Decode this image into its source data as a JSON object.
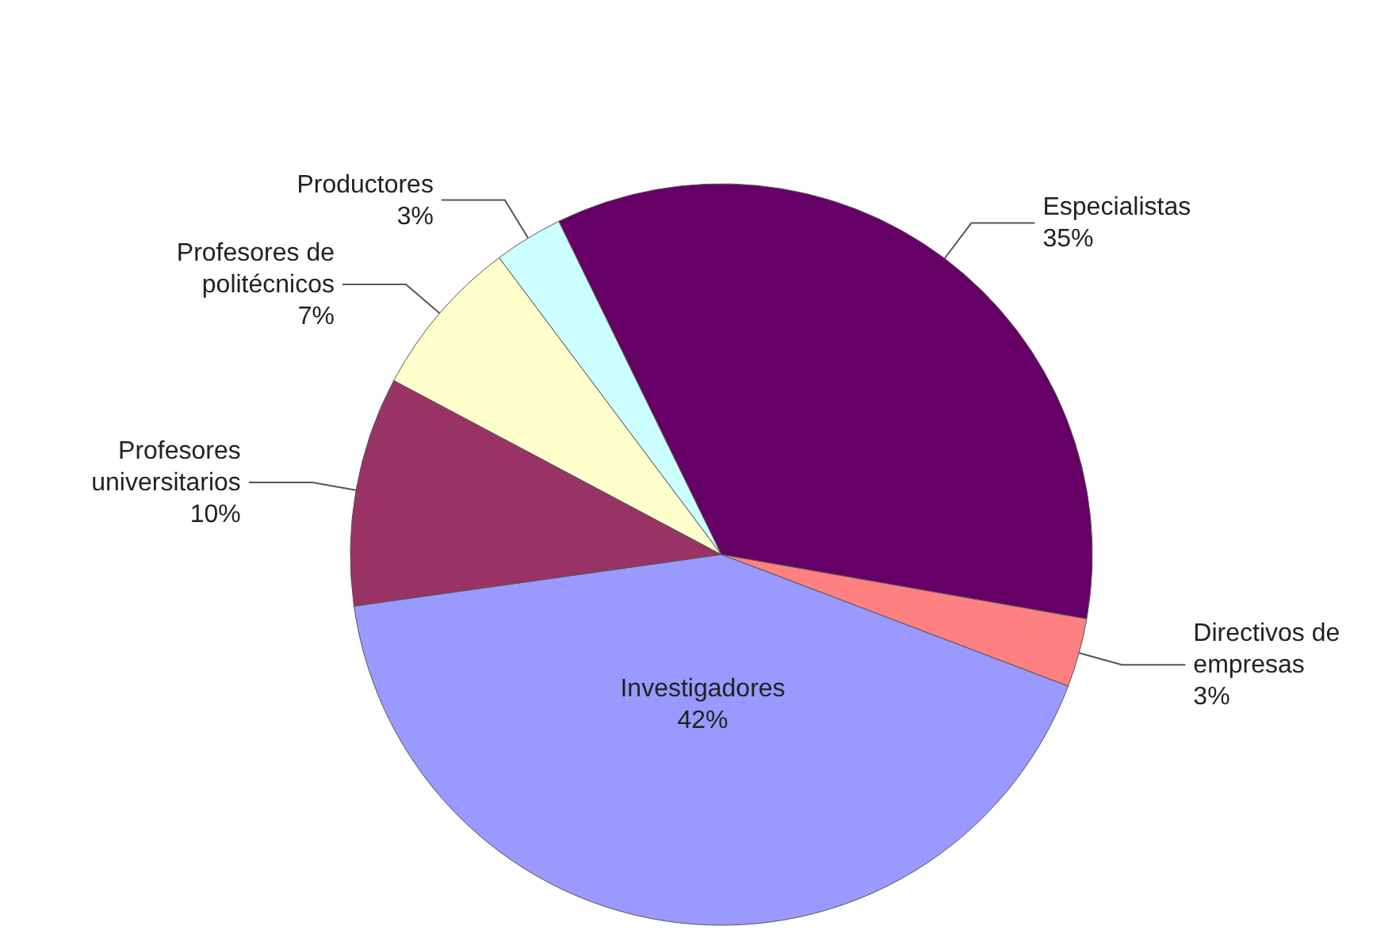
{
  "chart_data": {
    "type": "pie",
    "categories": [
      "Especialistas",
      "Directivos de empresas",
      "Investigadores",
      "Profesores universitarios",
      "Profesores de politécnicos",
      "Productores"
    ],
    "values": [
      35,
      3,
      42,
      10,
      7,
      3
    ],
    "value_labels": [
      "35%",
      "3%",
      "42%",
      "10%",
      "7%",
      "3%"
    ],
    "colors": [
      "#660066",
      "#ff8080",
      "#9999ff",
      "#993366",
      "#ffffcc",
      "#ccffff"
    ]
  }
}
